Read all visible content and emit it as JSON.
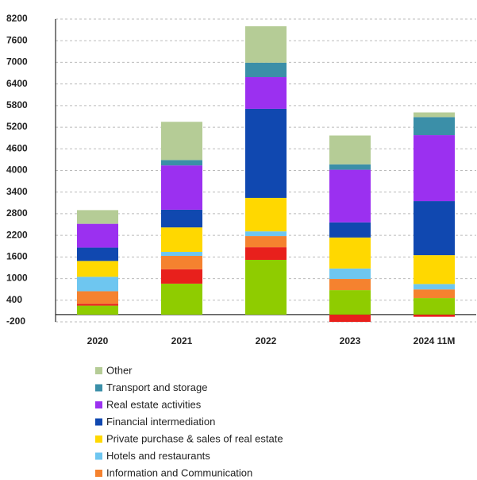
{
  "chart_data": {
    "type": "stacked_bar",
    "categories": [
      "2020",
      "2021",
      "2022",
      "2023",
      "2024 11M"
    ],
    "series": [
      {
        "color": "#8fcc00",
        "values": [
          250,
          860,
          1520,
          680,
          460
        ]
      },
      {
        "color": "#e8201c",
        "values": [
          50,
          400,
          350,
          -200,
          -60
        ]
      },
      {
        "name": "Information and Communication",
        "color": "#f5822f",
        "values": [
          350,
          370,
          310,
          310,
          240
        ]
      },
      {
        "name": "Hotels and restaurants",
        "color": "#6ec6f0",
        "values": [
          400,
          110,
          130,
          290,
          150
        ]
      },
      {
        "name": "Private purchase & sales of real estate",
        "color": "#ffd800",
        "values": [
          440,
          680,
          930,
          860,
          800
        ]
      },
      {
        "name": "Financial intermediation",
        "color": "#1048b0",
        "values": [
          370,
          490,
          2470,
          420,
          1500
        ]
      },
      {
        "name": "Real estate activities",
        "color": "#9b30f0",
        "values": [
          660,
          1230,
          880,
          1460,
          1830
        ]
      },
      {
        "name": "Transport and storage",
        "color": "#3b8fa8",
        "values": [
          0,
          150,
          400,
          150,
          500
        ]
      },
      {
        "name": "Other",
        "color": "#b5cc96",
        "values": [
          380,
          1060,
          1010,
          800,
          130
        ]
      }
    ],
    "ylim": [
      -200,
      8200
    ],
    "yticks": [
      -200,
      400,
      1000,
      1600,
      2200,
      2800,
      3400,
      4000,
      4600,
      5200,
      5800,
      6400,
      7000,
      7600,
      8200
    ],
    "grid": true
  }
}
